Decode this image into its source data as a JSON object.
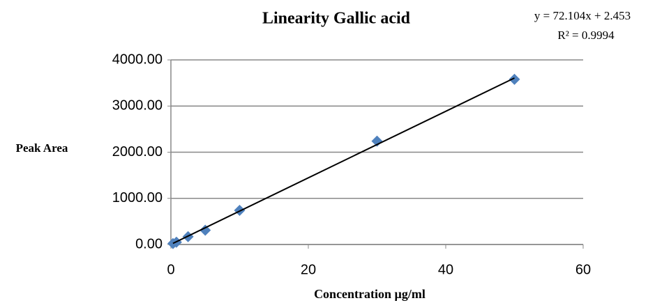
{
  "chart_data": {
    "type": "scatter",
    "title": "Linearity  Gallic acid",
    "x_label": "Concentration µg/ml",
    "y_label": "Peak Area",
    "series": [
      {
        "name": "Gallic acid",
        "color": "#4f81bd",
        "x": [
          0.3,
          0.8,
          2.5,
          5,
          10,
          30,
          50
        ],
        "values": [
          20,
          50,
          170,
          310,
          740,
          2240,
          3580
        ]
      }
    ],
    "trendline": {
      "equation": "y = 72.104x + 2.453",
      "r2": "R² = 0.9994",
      "slope": 72.104,
      "intercept": 2.453,
      "color": "#000000"
    },
    "xlim": [
      0,
      60
    ],
    "xticks": [
      0,
      20,
      40,
      60
    ],
    "ylim": [
      0,
      4000
    ],
    "yticks": [
      {
        "value": 0,
        "label": "0.00"
      },
      {
        "value": 1000,
        "label": "1000.00"
      },
      {
        "value": 2000,
        "label": "2000.00"
      },
      {
        "value": 3000,
        "label": "3000.00"
      },
      {
        "value": 4000,
        "label": "4000.00"
      }
    ],
    "grid": true
  }
}
